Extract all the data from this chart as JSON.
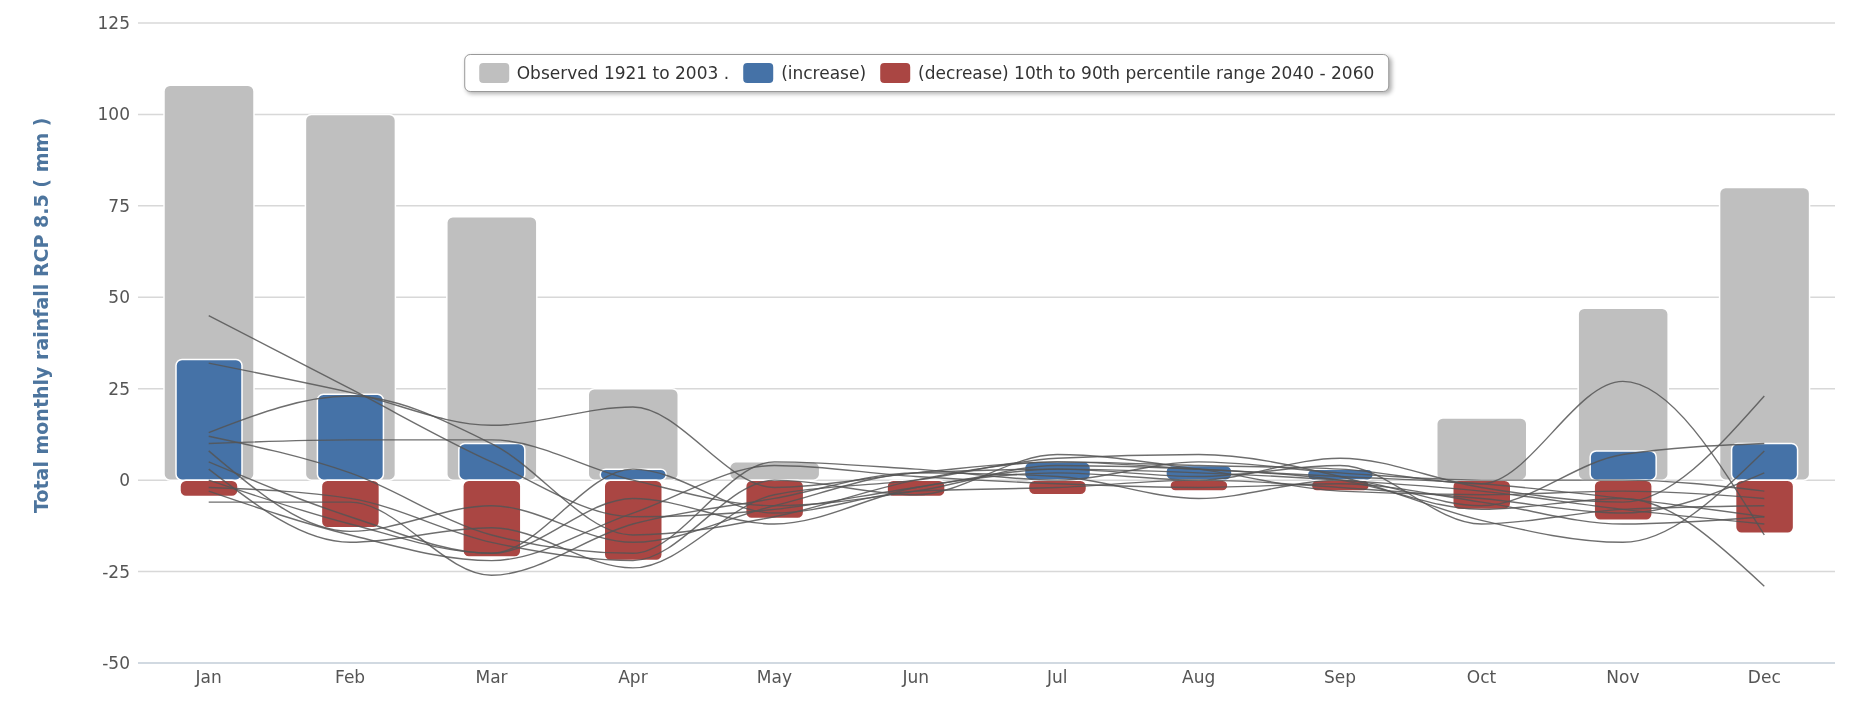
{
  "chart_data": {
    "type": "bar",
    "ylabel": "Total monthly rainfall RCP 8.5 ( mm )",
    "categories": [
      "Jan",
      "Feb",
      "Mar",
      "Apr",
      "May",
      "Jun",
      "Jul",
      "Aug",
      "Sep",
      "Oct",
      "Nov",
      "Dec"
    ],
    "ylim": [
      -50,
      125
    ],
    "yticks": [
      -50,
      -25,
      0,
      25,
      50,
      75,
      100,
      125
    ],
    "grid": "y",
    "legend": "top",
    "series": [
      {
        "name": "Observed 1921 to 2003 .",
        "color": "#bfbfbf",
        "values": [
          108,
          100,
          72,
          25,
          5,
          null,
          null,
          null,
          null,
          17,
          47,
          80
        ]
      },
      {
        "name": "(increase)",
        "color": "#4572a7",
        "values": [
          33,
          23.5,
          10,
          3,
          null,
          null,
          5,
          4,
          3,
          null,
          8,
          10
        ]
      },
      {
        "name": "(decrease) 10th to 90th percentile range 2040 - 2060",
        "color": "#aa4643",
        "values": [
          -4.5,
          -13,
          -21,
          -22,
          -10.5,
          -4.5,
          -4,
          -3,
          -3,
          -8,
          -11,
          -14.5
        ]
      },
      {
        "type": "line",
        "color": "#555555",
        "values": [
          45,
          25,
          5,
          -10,
          -8,
          -2,
          3,
          2,
          0,
          -3,
          -8,
          -12
        ]
      },
      {
        "type": "line",
        "color": "#555555",
        "values": [
          32,
          24,
          15,
          20,
          -2,
          2,
          5,
          3,
          1,
          -1,
          -5,
          -10
        ]
      },
      {
        "type": "line",
        "color": "#555555",
        "values": [
          13,
          23,
          10,
          -15,
          -10,
          0,
          5,
          4,
          3,
          -1,
          27,
          -15
        ]
      },
      {
        "type": "line",
        "color": "#555555",
        "values": [
          10,
          11,
          11,
          0,
          -7,
          -3,
          4,
          3,
          0,
          -8,
          -5,
          -29
        ]
      },
      {
        "type": "line",
        "color": "#555555",
        "values": [
          5,
          -10,
          -20,
          -5,
          -12,
          -2,
          2,
          0,
          6,
          -2,
          -6,
          23
        ]
      },
      {
        "type": "line",
        "color": "#555555",
        "values": [
          -6,
          -6,
          -26,
          -12,
          -5,
          2,
          1,
          -5,
          0,
          -7,
          7,
          10
        ]
      },
      {
        "type": "line",
        "color": "#555555",
        "values": [
          3,
          -17,
          -13,
          -24,
          -4,
          0,
          6,
          7,
          1,
          -11,
          -17,
          8
        ]
      },
      {
        "type": "line",
        "color": "#555555",
        "values": [
          0,
          -12,
          -20,
          3,
          -9,
          -3,
          -2,
          0,
          -2,
          -5,
          -9,
          2
        ]
      },
      {
        "type": "line",
        "color": "#555555",
        "values": [
          -2,
          -5,
          -17,
          -22,
          0,
          -4,
          7,
          3,
          -3,
          -4,
          -3,
          -5
        ]
      },
      {
        "type": "line",
        "color": "#555555",
        "values": [
          8,
          -14,
          -7,
          -17,
          -7,
          2,
          3,
          1,
          4,
          -12,
          -8,
          -7
        ]
      },
      {
        "type": "line",
        "color": "#555555",
        "values": [
          -3,
          -15,
          -22,
          -9,
          4,
          1,
          -1,
          -2,
          -1,
          -6,
          -12,
          -10
        ]
      },
      {
        "type": "line",
        "color": "#555555",
        "values": [
          12,
          2,
          -15,
          -20,
          5,
          3,
          0,
          5,
          2,
          0,
          0,
          -3
        ]
      }
    ]
  }
}
